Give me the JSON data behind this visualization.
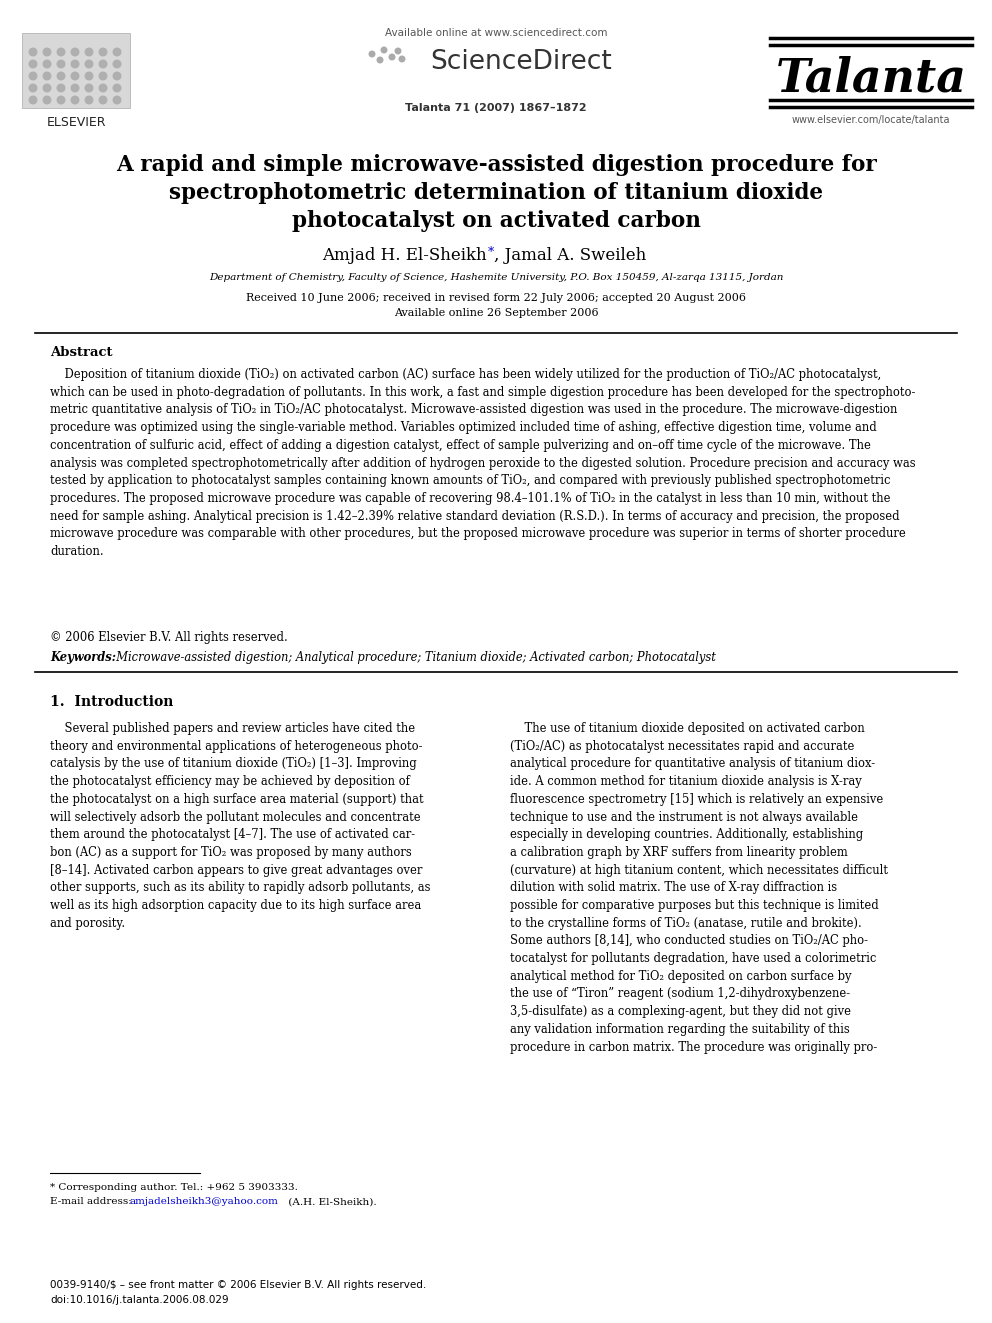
{
  "bg_color": "#ffffff",
  "header": {
    "available_online": "Available online at www.sciencedirect.com",
    "sciencedirect": "ScienceDirect",
    "journal_name": "Talanta",
    "journal_ref": "Talanta 71 (2007) 1867–1872",
    "journal_url": "www.elsevier.com/locate/talanta",
    "elsevier_text": "ELSEVIER"
  },
  "title_line1": "A rapid and simple microwave-assisted digestion procedure for",
  "title_line2": "spectrophotometric determination of titanium dioxide",
  "title_line3": "photocatalyst on activated carbon",
  "affiliation": "Department of Chemistry, Faculty of Science, Hashemite University, P.O. Box 150459, Al-zarqa 13115, Jordan",
  "received": "Received 10 June 2006; received in revised form 22 July 2006; accepted 20 August 2006",
  "available": "Available online 26 September 2006",
  "abstract_title": "Abstract",
  "abstract_wrapped": "    Deposition of titanium dioxide (TiO₂) on activated carbon (AC) surface has been widely utilized for the production of TiO₂/AC photocatalyst,\nwhich can be used in photo-degradation of pollutants. In this work, a fast and simple digestion procedure has been developed for the spectrophoto-\nmetric quantitative analysis of TiO₂ in TiO₂/AC photocatalyst. Microwave-assisted digestion was used in the procedure. The microwave-digestion\nprocedure was optimized using the single-variable method. Variables optimized included time of ashing, effective digestion time, volume and\nconcentration of sulfuric acid, effect of adding a digestion catalyst, effect of sample pulverizing and on–off time cycle of the microwave. The\nanalysis was completed spectrophotometrically after addition of hydrogen peroxide to the digested solution. Procedure precision and accuracy was\ntested by application to photocatalyst samples containing known amounts of TiO₂, and compared with previously published spectrophotometric\nprocedures. The proposed microwave procedure was capable of recovering 98.4–101.1% of TiO₂ in the catalyst in less than 10 min, without the\nneed for sample ashing. Analytical precision is 1.42–2.39% relative standard deviation (R.S.D.). In terms of accuracy and precision, the proposed\nmicrowave procedure was comparable with other procedures, but the proposed microwave procedure was superior in terms of shorter procedure\nduration.",
  "copyright": "© 2006 Elsevier B.V. All rights reserved.",
  "keywords_label": "Keywords:",
  "keywords_text": "  Microwave-assisted digestion; Analytical procedure; Titanium dioxide; Activated carbon; Photocatalyst",
  "section1_title": "1.  Introduction",
  "intro_col1": "    Several published papers and review articles have cited the\ntheory and environmental applications of heterogeneous photo-\ncatalysis by the use of titanium dioxide (TiO₂) [1–3]. Improving\nthe photocatalyst efficiency may be achieved by deposition of\nthe photocatalyst on a high surface area material (support) that\nwill selectively adsorb the pollutant molecules and concentrate\nthem around the photocatalyst [4–7]. The use of activated car-\nbon (AC) as a support for TiO₂ was proposed by many authors\n[8–14]. Activated carbon appears to give great advantages over\nother supports, such as its ability to rapidly adsorb pollutants, as\nwell as its high adsorption capacity due to its high surface area\nand porosity.",
  "intro_col2": "    The use of titanium dioxide deposited on activated carbon\n(TiO₂/AC) as photocatalyst necessitates rapid and accurate\nanalytical procedure for quantitative analysis of titanium diox-\nide. A common method for titanium dioxide analysis is X-ray\nfluorescence spectrometry [15] which is relatively an expensive\ntechnique to use and the instrument is not always available\nespecially in developing countries. Additionally, establishing\na calibration graph by XRF suffers from linearity problem\n(curvature) at high titanium content, which necessitates difficult\ndilution with solid matrix. The use of X-ray diffraction is\npossible for comparative purposes but this technique is limited\nto the crystalline forms of TiO₂ (anatase, rutile and brokite).\nSome authors [8,14], who conducted studies on TiO₂/AC pho-\ntocatalyst for pollutants degradation, have used a colorimetric\nanalytical method for TiO₂ deposited on carbon surface by\nthe use of “Tiron” reagent (sodium 1,2-dihydroxybenzene-\n3,5-disulfate) as a complexing-agent, but they did not give\nany validation information regarding the suitability of this\nprocedure in carbon matrix. The procedure was originally pro-",
  "footnote1": "* Corresponding author. Tel.: +962 5 3903333.",
  "footnote2_pre": "E-mail address: ",
  "footnote2_email": "amjadelsheikh3@yahoo.com",
  "footnote2_post": " (A.H. El-Sheikh).",
  "bottom_issn": "0039-9140/$ – see front matter © 2006 Elsevier B.V. All rights reserved.",
  "bottom_doi": "doi:10.1016/j.talanta.2006.08.029"
}
